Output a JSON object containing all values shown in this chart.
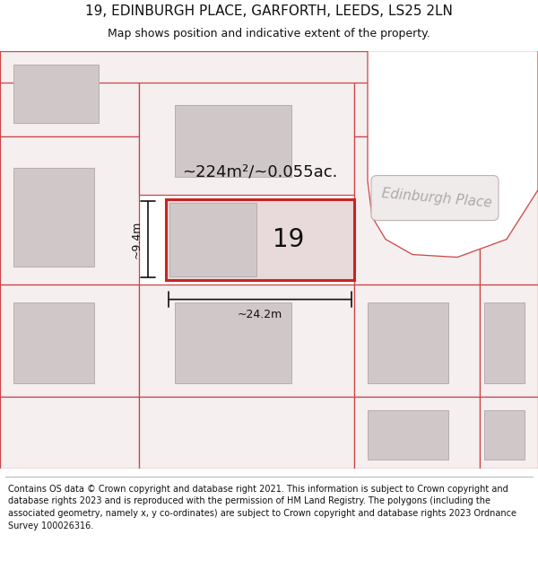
{
  "title": "19, EDINBURGH PLACE, GARFORTH, LEEDS, LS25 2LN",
  "subtitle": "Map shows position and indicative extent of the property.",
  "footer": "Contains OS data © Crown copyright and database right 2021. This information is subject to Crown copyright and database rights 2023 and is reproduced with the permission of HM Land Registry. The polygons (including the associated geometry, namely x, y co-ordinates) are subject to Crown copyright and database rights 2023 Ordnance Survey 100026316.",
  "area_label": "~224m²/~0.055ac.",
  "width_label": "~24.2m",
  "height_label": "~9.4m",
  "property_number": "19",
  "road_label": "Edinburgh Place",
  "white": "#ffffff",
  "light_pink": "#f5efef",
  "plot_line": "#cc4444",
  "building_fill": "#d0c8c8",
  "building_edge": "#b8acac",
  "prop_fill": "#e8dada",
  "prop_line": "#cc2222",
  "dim_color": "#111111",
  "road_text_color": "#aaaaaa",
  "title_color": "#111111",
  "footer_color": "#111111",
  "title_fontsize": 11,
  "subtitle_fontsize": 9,
  "footer_fontsize": 7,
  "area_fontsize": 13,
  "number_fontsize": 20,
  "dim_fontsize": 9,
  "road_fontsize": 11
}
